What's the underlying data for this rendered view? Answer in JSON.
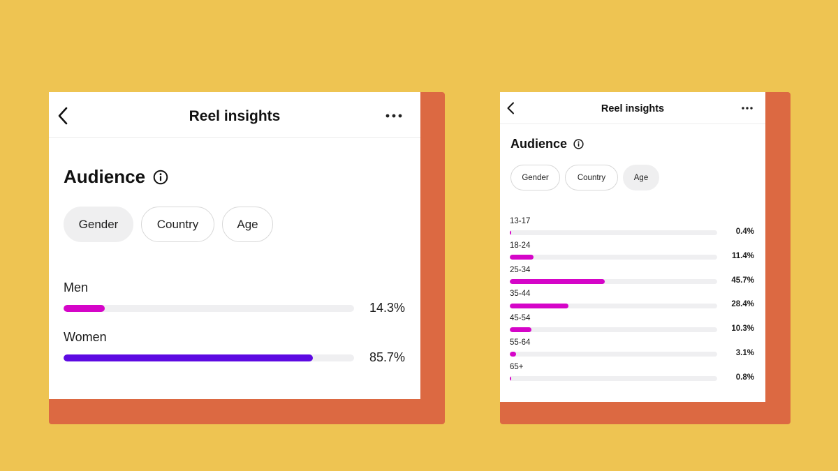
{
  "colors": {
    "background": "#EEC452",
    "panel_shadow": "#DC6942",
    "card": "#FFFFFF",
    "bar_track": "#EFEFF1",
    "magenta": "#D505C8",
    "violet": "#5D0AE2"
  },
  "left_panel": {
    "header": {
      "title": "Reel insights",
      "back_icon": "chevron-left-icon",
      "more_icon": "more-horizontal-icon"
    },
    "audience": {
      "title": "Audience",
      "info_icon": "info-circle-icon"
    },
    "tabs": [
      {
        "label": "Gender",
        "selected": true
      },
      {
        "label": "Country",
        "selected": false
      },
      {
        "label": "Age",
        "selected": false
      }
    ],
    "bars": [
      {
        "label": "Men",
        "value": 14.3,
        "display": "14.3%",
        "color": "#D505C8"
      },
      {
        "label": "Women",
        "value": 85.7,
        "display": "85.7%",
        "color": "#5D0AE2"
      }
    ]
  },
  "right_panel": {
    "header": {
      "title": "Reel insights",
      "back_icon": "chevron-left-icon",
      "more_icon": "more-horizontal-icon"
    },
    "audience": {
      "title": "Audience",
      "info_icon": "info-circle-icon"
    },
    "tabs": [
      {
        "label": "Gender",
        "selected": false
      },
      {
        "label": "Country",
        "selected": false
      },
      {
        "label": "Age",
        "selected": true
      }
    ],
    "bars": [
      {
        "label": "13-17",
        "value": 0.4,
        "display": "0.4%",
        "color": "#D505C8"
      },
      {
        "label": "18-24",
        "value": 11.4,
        "display": "11.4%",
        "color": "#D505C8"
      },
      {
        "label": "25-34",
        "value": 45.7,
        "display": "45.7%",
        "color": "#D505C8"
      },
      {
        "label": "35-44",
        "value": 28.4,
        "display": "28.4%",
        "color": "#D505C8"
      },
      {
        "label": "45-54",
        "value": 10.3,
        "display": "10.3%",
        "color": "#D505C8"
      },
      {
        "label": "55-64",
        "value": 3.1,
        "display": "3.1%",
        "color": "#D505C8"
      },
      {
        "label": "65+",
        "value": 0.8,
        "display": "0.8%",
        "color": "#D505C8"
      }
    ]
  }
}
